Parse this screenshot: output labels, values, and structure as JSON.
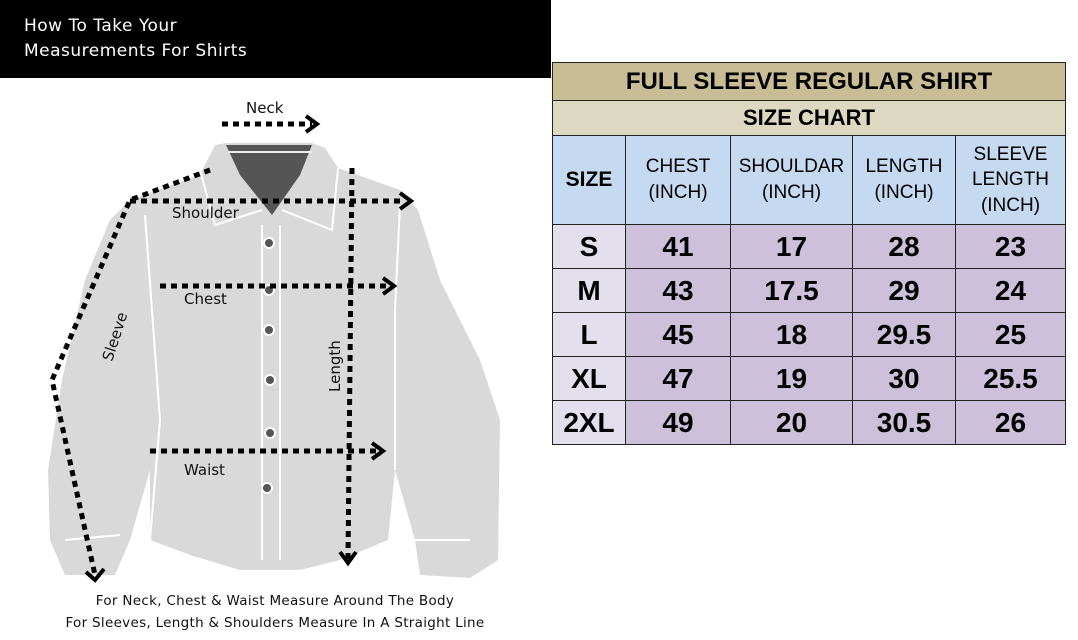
{
  "banner": {
    "line1": "How To Take Your",
    "line2": "Measurements For Shirts"
  },
  "diagram": {
    "labels": {
      "neck": "Neck",
      "shoulder": "Shoulder",
      "chest": "Chest",
      "sleeve": "Sleeve",
      "length": "Length",
      "waist": "Waist"
    }
  },
  "footer": {
    "line1": "For Neck, Chest & Waist Measure Around The Body",
    "line2": "For Sleeves, Length & Shoulders Measure In A Straight Line"
  },
  "size_chart": {
    "title": "FULL SLEEVE REGULAR SHIRT",
    "subtitle": "SIZE CHART",
    "headers": [
      {
        "l1": "SIZE",
        "l2": "",
        "l3": ""
      },
      {
        "l1": "CHEST",
        "l2": "(INCH)",
        "l3": ""
      },
      {
        "l1": "SHOULDAR",
        "l2": "(INCH)",
        "l3": ""
      },
      {
        "l1": "LENGTH",
        "l2": "(INCH)",
        "l3": ""
      },
      {
        "l1": "SLEEVE",
        "l2": "LENGTH",
        "l3": "(INCH)"
      }
    ],
    "rows": [
      [
        "S",
        "41",
        "17",
        "28",
        "23"
      ],
      [
        "M",
        "43",
        "17.5",
        "29",
        "24"
      ],
      [
        "L",
        "45",
        "18",
        "29.5",
        "25"
      ],
      [
        "XL",
        "47",
        "19",
        "30",
        "25.5"
      ],
      [
        "2XL",
        "49",
        "20",
        "30.5",
        "26"
      ]
    ],
    "colors": {
      "title_bg": "#c8bd95",
      "subtitle_bg": "#ddd8c2",
      "header_bg": "#c5d9f1",
      "size_bg": "#e4dfec",
      "cell_bg": "#ccc0da"
    }
  }
}
